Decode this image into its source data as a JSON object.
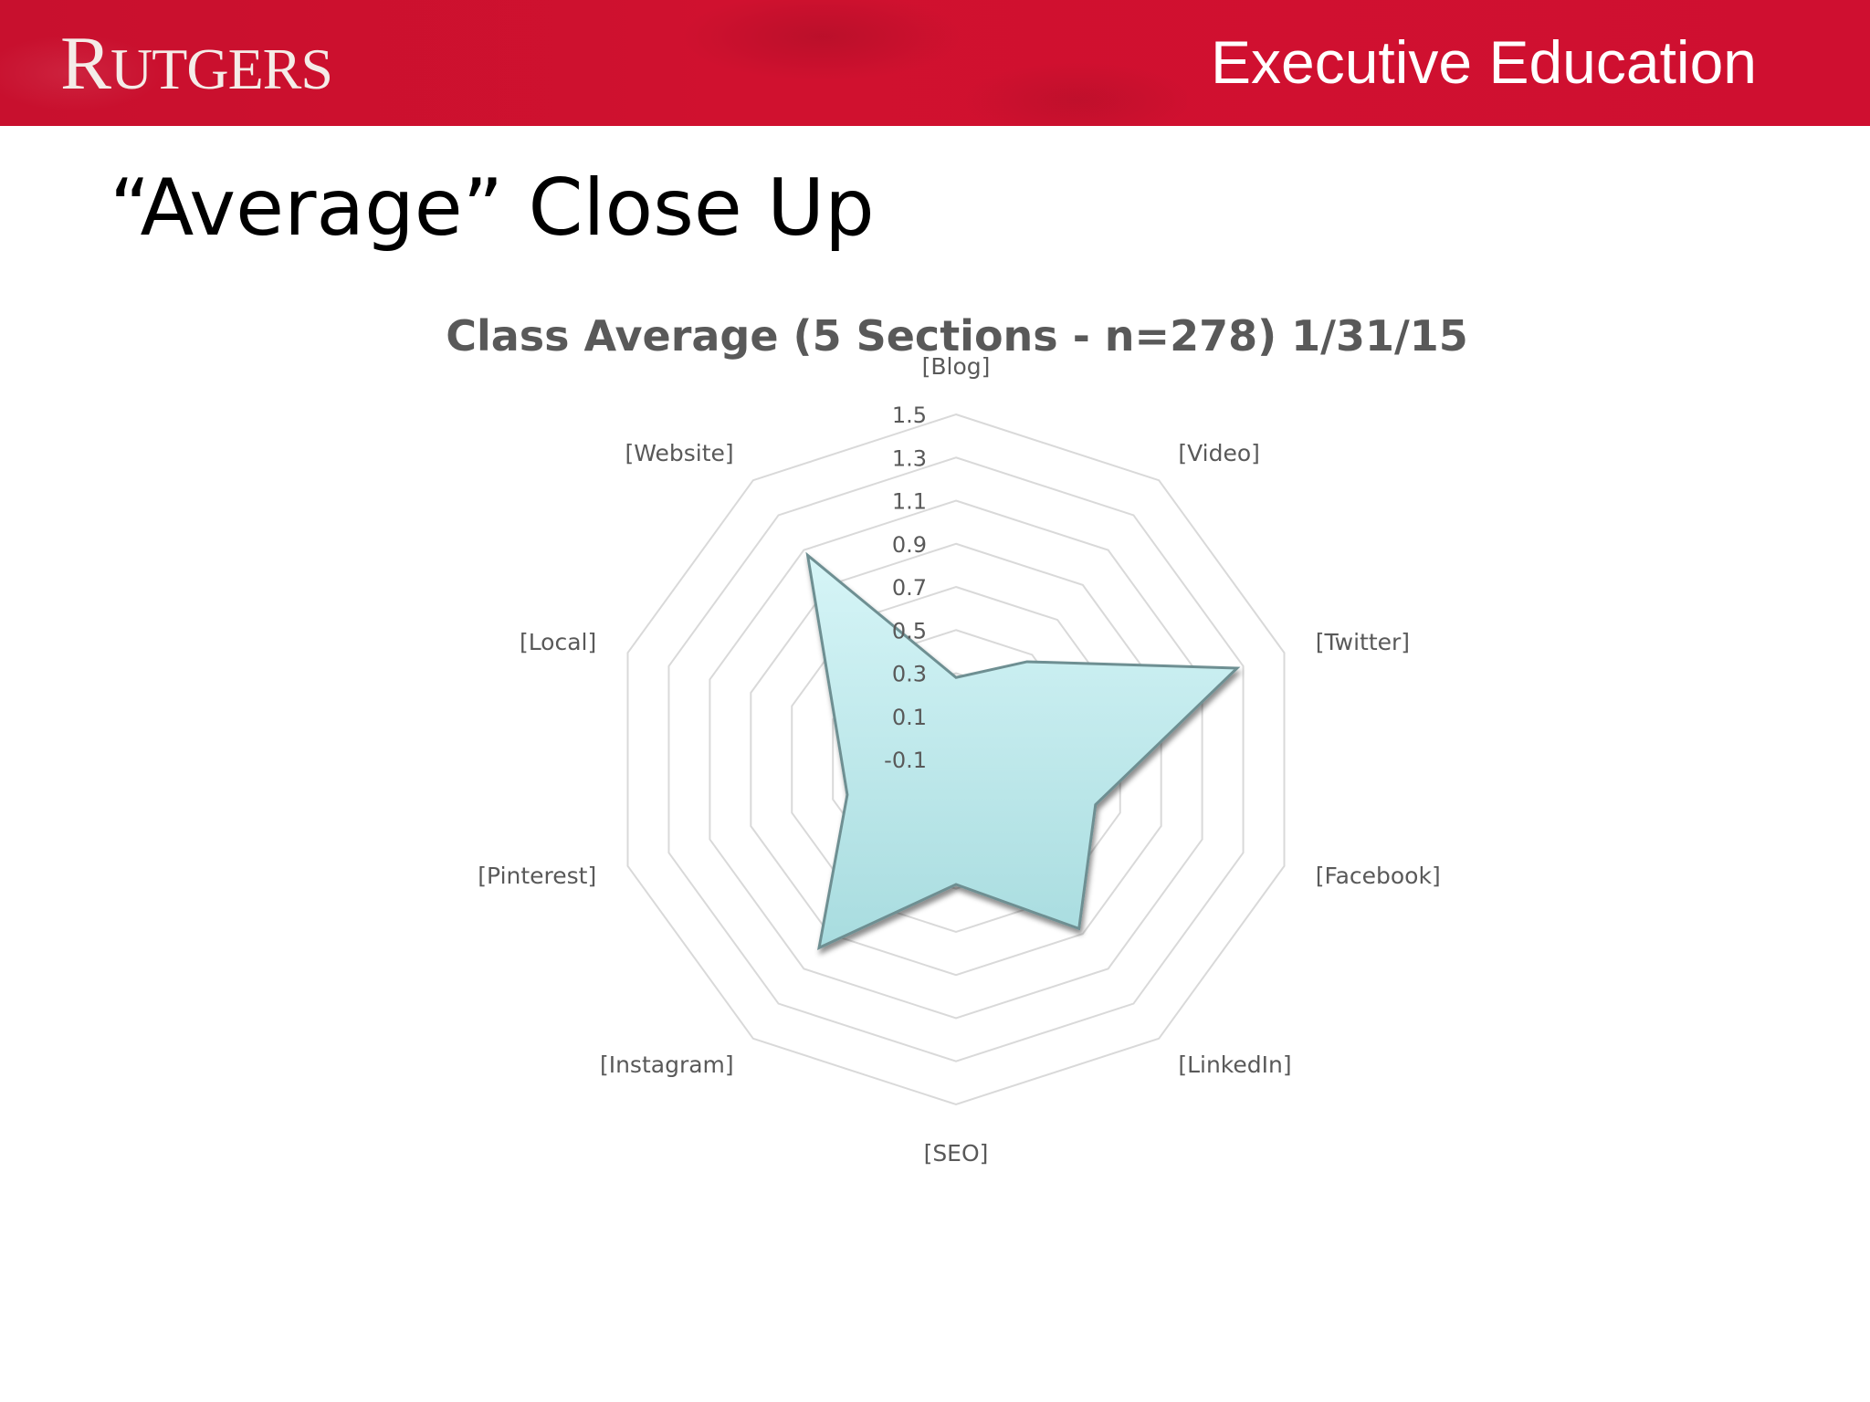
{
  "banner": {
    "logo_first": "R",
    "logo_rest": "UTGERS",
    "title": "Executive Education"
  },
  "slide": {
    "title": "“Average” Close Up"
  },
  "colors": {
    "banner": "#c8102e",
    "fill_top": "#d6f5f7",
    "fill_bottom": "#a8dcdf",
    "stroke": "#6e8f92",
    "grid": "#d9d9d9",
    "text": "#595959"
  },
  "chart_data": {
    "type": "radar",
    "title": "Class Average (5 Sections - n=278)  1/31/15",
    "categories": [
      "[Blog]",
      "[Video]",
      "[Twitter]",
      "[Facebook]",
      "[LinkedIn]",
      "[SEO]",
      "[Instagram]",
      "[Pinterest]",
      "[Local]",
      "[Website]"
    ],
    "series": [
      {
        "values": [
          0.28,
          0.46,
          1.27,
          0.58,
          0.87,
          0.48,
          0.98,
          0.43,
          0.49,
          1.07
        ]
      }
    ],
    "rticks": [
      "-0.1",
      "0.1",
      "0.3",
      "0.5",
      "0.7",
      "0.9",
      "1.1",
      "1.3",
      "1.5"
    ],
    "rlim": [
      -0.1,
      1.5
    ],
    "grid": true
  }
}
